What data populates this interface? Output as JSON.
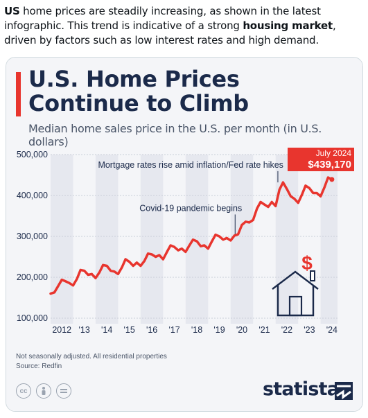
{
  "post": {
    "part1": "US",
    "part2": " home prices are steadily increasing, as shown in the latest infographic. This trend is indicative of a strong ",
    "part3": "housing market",
    "part4": ", driven by factors such as low interest rates and high demand."
  },
  "card": {
    "title_line1": "U.S. Home Prices",
    "title_line2": "Continue to Climb",
    "subtitle": "Median home sales price in the U.S. per month (in U.S. dollars)",
    "footnote": "Not seasonally adjusted. All residential properties",
    "source": "Source: Redfin",
    "brand": "statista",
    "license_icons": [
      "cc-icon",
      "person-icon",
      "equals-icon"
    ]
  },
  "colors": {
    "line": "#e8352e",
    "title": "#1b2a4a",
    "band": "#e6e8ef",
    "background": "#f4f5f8"
  },
  "chart_data": {
    "type": "line",
    "x_ticks": [
      "2012",
      "'13",
      "'14",
      "'15",
      "'16",
      "'17",
      "'18",
      "'19",
      "'20",
      "'21",
      "'22",
      "'23",
      "'24"
    ],
    "y_ticks": [
      "100,000",
      "200,000",
      "300,000",
      "400,000",
      "500,000"
    ],
    "ylim": [
      100000,
      500000
    ],
    "xlim": [
      2012.0,
      2024.75
    ],
    "annotations": [
      {
        "text": "Mortgage rates rise amid inflation/Fed rate hikes",
        "x": 2022.1
      },
      {
        "text": "Covid-19 pandemic begins",
        "x": 2020.2
      }
    ],
    "callout": {
      "label": "July 2024",
      "value": "$439,170",
      "x": 2024.5,
      "y": 439170
    },
    "series": [
      {
        "x": [
          2012.0,
          2012.17,
          2012.33,
          2012.5,
          2012.67,
          2012.83,
          2013.0,
          2013.17,
          2013.33,
          2013.5,
          2013.67,
          2013.83,
          2014.0,
          2014.17,
          2014.33,
          2014.5,
          2014.67,
          2014.83,
          2015.0,
          2015.17,
          2015.33,
          2015.5,
          2015.67,
          2015.83,
          2016.0,
          2016.17,
          2016.33,
          2016.5,
          2016.67,
          2016.83,
          2017.0,
          2017.17,
          2017.33,
          2017.5,
          2017.67,
          2017.83,
          2018.0,
          2018.17,
          2018.33,
          2018.5,
          2018.67,
          2018.83,
          2019.0,
          2019.17,
          2019.33,
          2019.5,
          2019.67,
          2019.83,
          2020.0,
          2020.17,
          2020.33,
          2020.5,
          2020.67,
          2020.83,
          2021.0,
          2021.17,
          2021.33,
          2021.5,
          2021.67,
          2021.83,
          2022.0,
          2022.17,
          2022.33,
          2022.5,
          2022.67,
          2022.83,
          2023.0,
          2023.17,
          2023.33,
          2023.5,
          2023.67,
          2023.83,
          2024.0,
          2024.17,
          2024.33,
          2024.5
        ],
        "y": [
          160000,
          163000,
          178000,
          194000,
          190000,
          186000,
          180000,
          196000,
          218000,
          216000,
          206000,
          208000,
          198000,
          212000,
          230000,
          228000,
          216000,
          214000,
          208000,
          224000,
          244000,
          238000,
          228000,
          236000,
          228000,
          240000,
          258000,
          256000,
          250000,
          254000,
          244000,
          262000,
          278000,
          274000,
          266000,
          270000,
          262000,
          278000,
          292000,
          288000,
          276000,
          278000,
          270000,
          288000,
          304000,
          300000,
          292000,
          296000,
          290000,
          302000,
          305000,
          328000,
          336000,
          334000,
          340000,
          368000,
          384000,
          378000,
          372000,
          384000,
          374000,
          414000,
          432000,
          416000,
          398000,
          392000,
          382000,
          402000,
          424000,
          418000,
          406000,
          406000,
          398000,
          420000,
          444000,
          439170
        ]
      }
    ]
  }
}
